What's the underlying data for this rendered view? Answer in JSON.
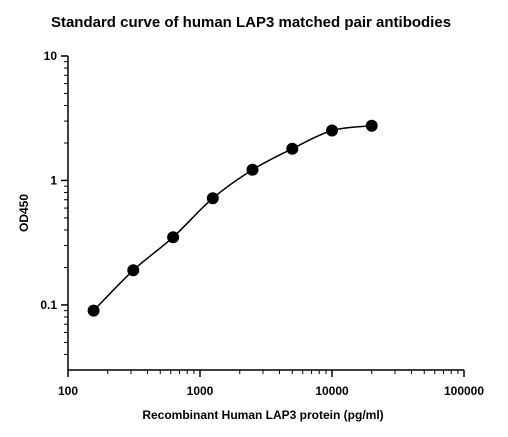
{
  "chart_data": {
    "type": "scatter",
    "title": "Standard curve of human LAP3 matched pair antibodies",
    "xlabel": "Recombinant Human LAP3 protein (pg/ml)",
    "ylabel": "OD450",
    "xscale": "log",
    "yscale": "log",
    "xlim": [
      100,
      100000
    ],
    "ylim": [
      0.03,
      10
    ],
    "xticks": [
      100,
      1000,
      10000,
      100000
    ],
    "xtick_labels": [
      "100",
      "1000",
      "10000",
      "100000"
    ],
    "yticks": [
      0.1,
      1,
      10
    ],
    "ytick_labels": [
      "0.1",
      "1",
      "10"
    ],
    "grid": false,
    "fit_curve": true,
    "series": [
      {
        "x": [
          156.25,
          312.5,
          625,
          1250,
          2500,
          5000,
          10000,
          20000
        ],
        "y": [
          0.09,
          0.19,
          0.35,
          0.72,
          1.22,
          1.8,
          2.52,
          2.75
        ]
      }
    ]
  }
}
